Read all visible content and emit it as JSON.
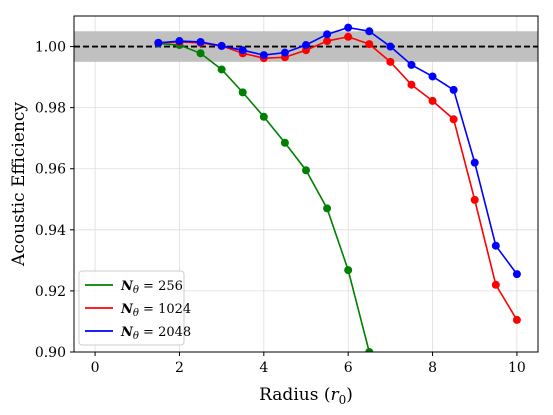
{
  "chart_data": {
    "type": "line",
    "xlabel": "Radius ($r_0$)",
    "ylabel": "Acoustic Efficiency",
    "xlim": [
      -0.5,
      10.5
    ],
    "ylim": [
      0.9,
      1.01
    ],
    "xticks": [
      0,
      2,
      4,
      6,
      8,
      10
    ],
    "yticks": [
      0.9,
      0.92,
      0.94,
      0.96,
      0.98,
      1.0
    ],
    "xtick_labels": [
      "0",
      "2",
      "4",
      "6",
      "8",
      "10"
    ],
    "ytick_labels": [
      "0.90",
      "0.92",
      "0.94",
      "0.96",
      "0.98",
      "1.00"
    ],
    "grid": true,
    "legend_position": "lower-left",
    "reference_line": {
      "y": 1.0,
      "style": "dashed",
      "color": "#000000"
    },
    "tolerance_band": {
      "y0": 0.995,
      "y1": 1.005,
      "color": "#bdbdbd"
    },
    "series": [
      {
        "name": "N_θ = 256",
        "legend_symbol": "N",
        "legend_sub": "θ",
        "legend_value": " = 256",
        "color": "#008000",
        "x": [
          1.5,
          2.0,
          2.5,
          3.0,
          3.5,
          4.0,
          4.5,
          5.0,
          5.5,
          6.0,
          6.5
        ],
        "y": [
          1.001,
          1.0005,
          0.9978,
          0.9925,
          0.985,
          0.977,
          0.9685,
          0.9595,
          0.947,
          0.9268,
          0.9
        ]
      },
      {
        "name": "N_θ = 1024",
        "legend_symbol": "N",
        "legend_sub": "θ",
        "legend_value": " = 1024",
        "color": "#ff0000",
        "x": [
          1.5,
          2.0,
          2.5,
          3.0,
          3.5,
          4.0,
          4.5,
          5.0,
          5.5,
          6.0,
          6.5,
          7.0,
          7.5,
          8.0,
          8.5,
          9.0,
          9.5,
          10.0
        ],
        "y": [
          1.0012,
          1.0015,
          1.0012,
          1.0002,
          0.9978,
          0.9962,
          0.9965,
          0.9988,
          1.0018,
          1.0032,
          1.0008,
          0.995,
          0.9875,
          0.9822,
          0.9762,
          0.9498,
          0.922,
          0.9105
        ]
      },
      {
        "name": "N_θ = 2048",
        "legend_symbol": "N",
        "legend_sub": "θ",
        "legend_value": " = 2048",
        "color": "#0000ff",
        "x": [
          1.5,
          2.0,
          2.5,
          3.0,
          3.5,
          4.0,
          4.5,
          5.0,
          5.5,
          6.0,
          6.5,
          7.0,
          7.5,
          8.0,
          8.5,
          9.0,
          9.5,
          10.0
        ],
        "y": [
          1.0012,
          1.0018,
          1.0015,
          1.0002,
          0.9988,
          0.9972,
          0.998,
          1.0005,
          1.004,
          1.0062,
          1.005,
          1.0,
          0.994,
          0.9902,
          0.9858,
          0.962,
          0.9348,
          0.9255
        ]
      }
    ]
  }
}
